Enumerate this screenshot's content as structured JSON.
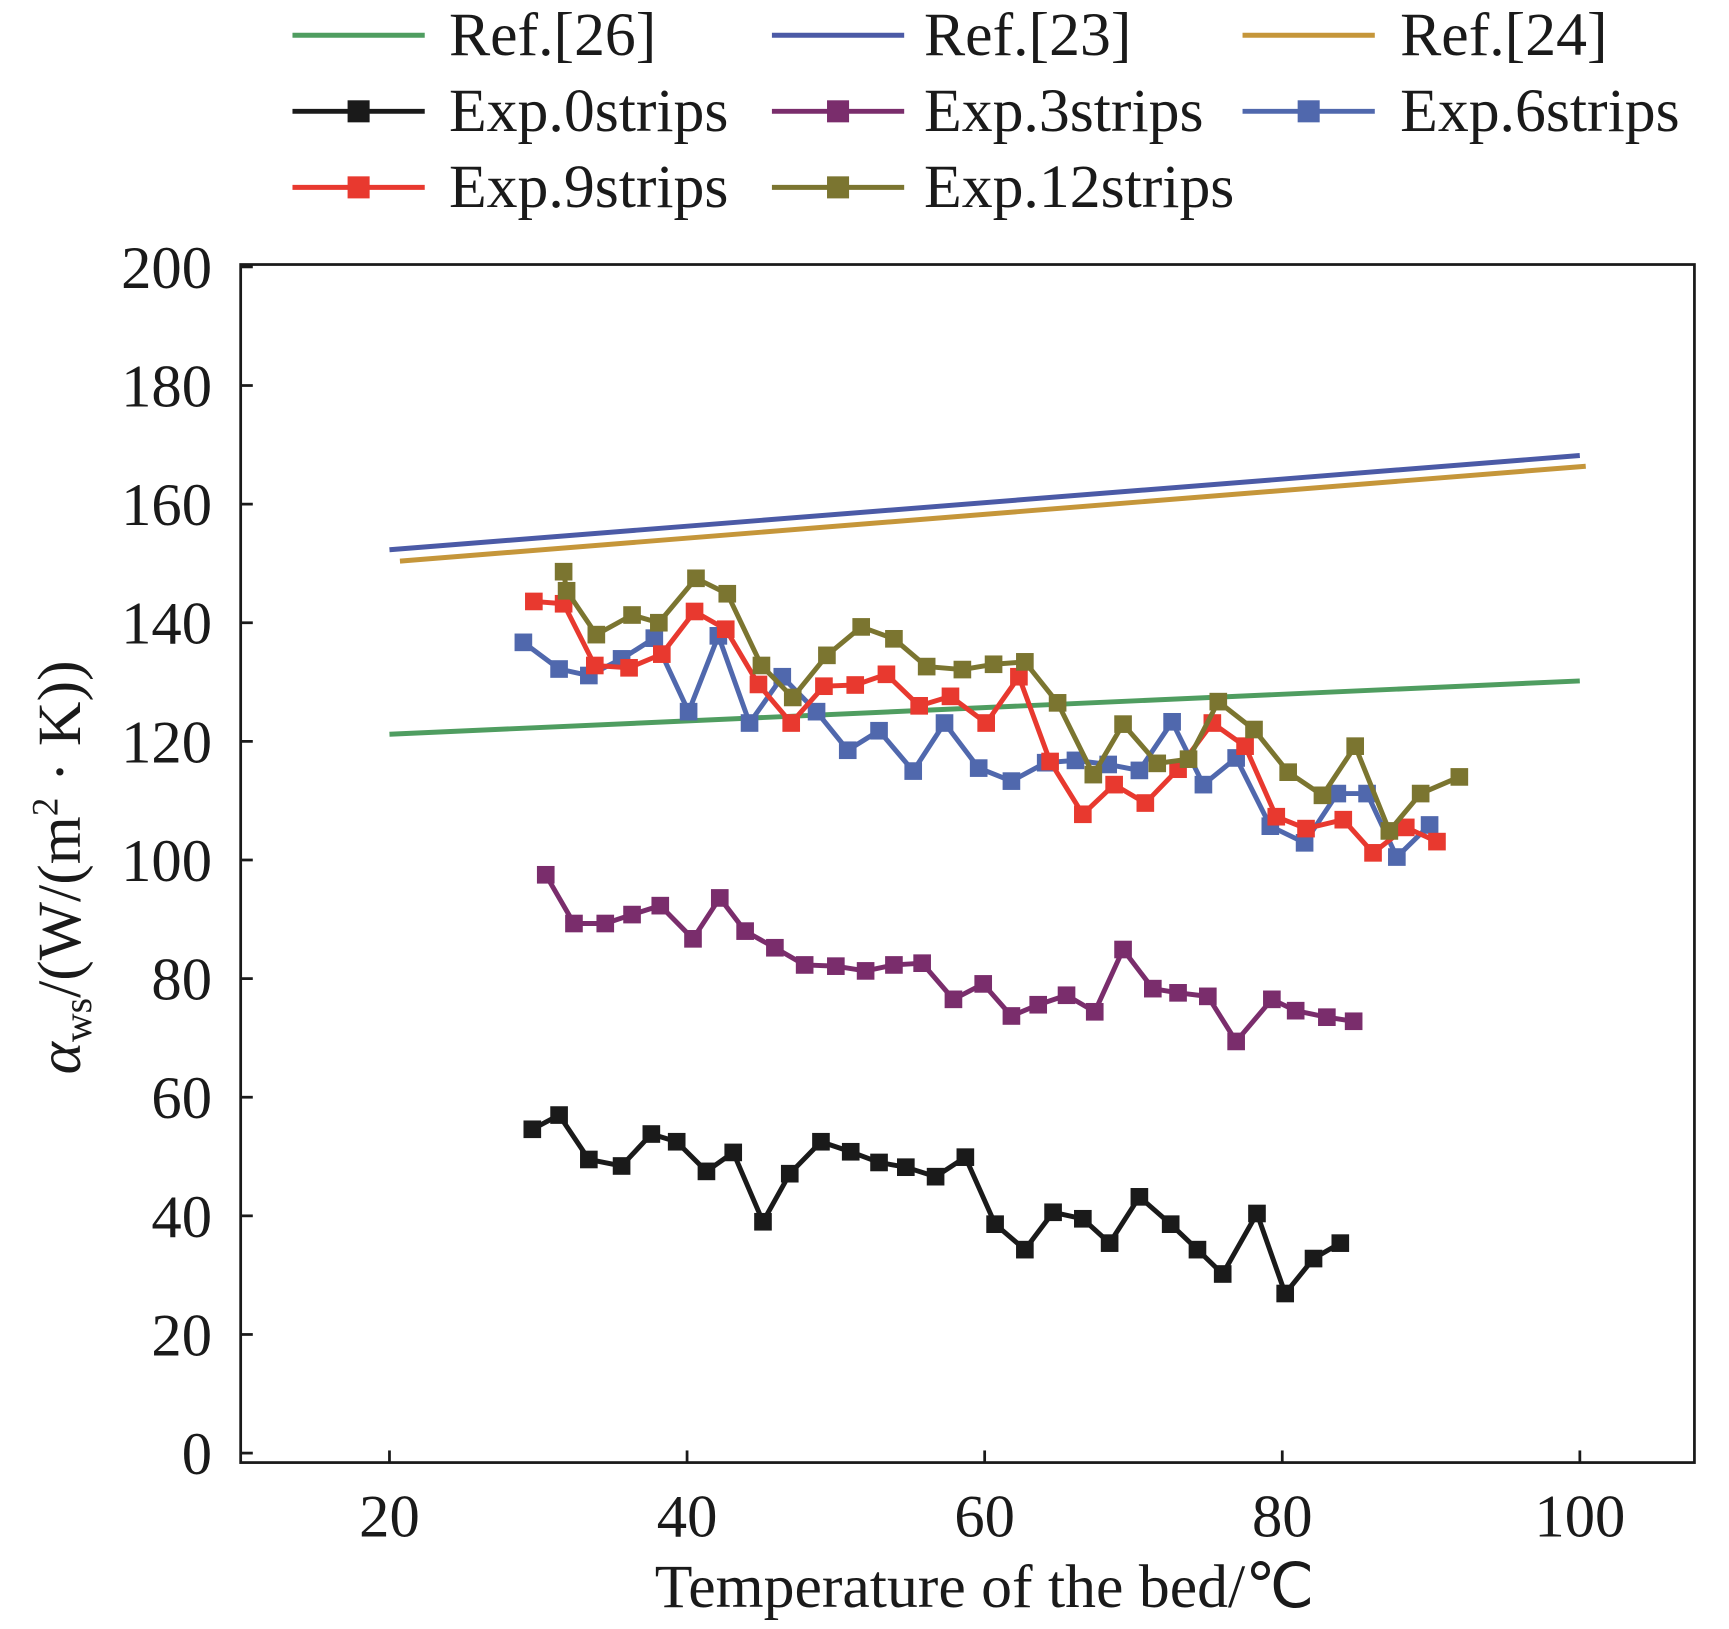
{
  "chart_data": {
    "type": "line",
    "xlabel": "Temperature of the bed/℃",
    "ylabel": {
      "symbol": "α",
      "subscript": "ws",
      "unit_a": "/(W/(m",
      "superscript": "2",
      "unit_b": " · K))"
    },
    "xlim": [
      10,
      107.7
    ],
    "ylim": [
      -1.6,
      200.4
    ],
    "x_ticks": [
      20,
      40,
      60,
      80,
      100
    ],
    "y_ticks": [
      0,
      20,
      40,
      60,
      80,
      100,
      120,
      140,
      160,
      180,
      200
    ],
    "grid": false,
    "series": [
      {
        "name": "Ref.[26]",
        "color": "#4f9d60",
        "markers": false,
        "x": [
          20,
          100
        ],
        "y": [
          121.2,
          130.2
        ]
      },
      {
        "name": "Ref.[23]",
        "color": "#4b5aa6",
        "markers": false,
        "x": [
          20,
          100
        ],
        "y": [
          152.3,
          168.2
        ]
      },
      {
        "name": "Ref.[24]",
        "color": "#c5963a",
        "markers": false,
        "x": [
          20.7,
          100.4
        ],
        "y": [
          150.4,
          166.4
        ]
      },
      {
        "name": "Exp.0strips",
        "color": "#1a1a1a",
        "markers": true,
        "x": [
          29.6,
          31.4,
          33.4,
          35.6,
          37.6,
          39.3,
          41.3,
          43.1,
          45.1,
          46.9,
          49.0,
          51.0,
          52.9,
          54.7,
          56.7,
          58.7,
          60.7,
          62.7,
          64.6,
          66.6,
          68.4,
          70.4,
          72.5,
          74.3,
          76.0,
          78.3,
          80.2,
          82.1,
          83.9
        ],
        "y": [
          54.6,
          57.0,
          49.5,
          48.4,
          53.8,
          52.5,
          47.5,
          50.7,
          39.0,
          47.1,
          52.5,
          50.8,
          49.0,
          48.2,
          46.6,
          49.9,
          38.6,
          34.3,
          40.6,
          39.5,
          35.4,
          43.2,
          38.6,
          34.3,
          30.2,
          40.4,
          26.9,
          32.8,
          35.4
        ]
      },
      {
        "name": "Exp.3strips",
        "color": "#7a2d6c",
        "markers": true,
        "x": [
          30.5,
          32.4,
          34.5,
          36.3,
          38.2,
          40.4,
          42.2,
          43.9,
          45.9,
          47.9,
          50.0,
          52.0,
          53.9,
          55.8,
          57.9,
          59.9,
          61.8,
          63.6,
          65.5,
          67.4,
          69.3,
          71.3,
          73.0,
          75.0,
          76.9,
          79.3,
          80.9,
          83.0,
          84.8
        ],
        "y": [
          97.5,
          89.3,
          89.3,
          90.8,
          92.3,
          86.7,
          93.6,
          88.0,
          85.2,
          82.3,
          82.1,
          81.3,
          82.3,
          82.6,
          76.5,
          79.1,
          73.7,
          75.6,
          77.2,
          74.4,
          84.9,
          78.3,
          77.6,
          77.0,
          69.4,
          76.5,
          74.6,
          73.5,
          72.8
        ]
      },
      {
        "name": "Exp.6strips",
        "color": "#5068ad",
        "markers": true,
        "x": [
          29.0,
          31.4,
          33.4,
          35.6,
          37.8,
          40.1,
          42.1,
          44.2,
          46.4,
          48.7,
          50.8,
          52.9,
          55.2,
          57.3,
          59.6,
          61.8,
          64.1,
          66.1,
          68.3,
          70.4,
          72.6,
          74.7,
          76.9,
          79.2,
          81.5,
          83.7,
          85.7,
          87.7,
          89.9
        ],
        "y": [
          136.7,
          132.2,
          131.1,
          133.9,
          137.4,
          125.0,
          137.8,
          123.1,
          130.9,
          125.0,
          118.5,
          121.8,
          115.0,
          123.1,
          115.5,
          113.3,
          116.4,
          116.8,
          116.1,
          115.1,
          123.3,
          112.7,
          117.2,
          105.7,
          102.9,
          111.2,
          111.2,
          100.5,
          105.9
        ]
      },
      {
        "name": "Exp.9strips",
        "color": "#e8392f",
        "markers": true,
        "x": [
          29.7,
          31.7,
          33.8,
          36.1,
          38.3,
          40.5,
          42.6,
          44.8,
          47.0,
          49.2,
          51.3,
          53.4,
          55.6,
          57.7,
          60.1,
          62.3,
          64.4,
          66.6,
          68.7,
          70.8,
          73.0,
          75.3,
          77.5,
          79.6,
          81.6,
          84.1,
          86.1,
          88.3,
          90.4
        ],
        "y": [
          143.6,
          143.2,
          132.8,
          132.4,
          134.7,
          141.9,
          138.9,
          129.6,
          123.1,
          129.3,
          129.5,
          131.3,
          126.0,
          127.6,
          123.1,
          130.9,
          116.6,
          107.7,
          112.7,
          109.6,
          115.3,
          123.1,
          119.2,
          107.3,
          105.3,
          106.8,
          101.2,
          105.5,
          103.1
        ]
      },
      {
        "name": "Exp.12strips",
        "color": "#7b7530",
        "markers": true,
        "x": [
          31.7,
          31.9,
          33.9,
          36.3,
          38.1,
          40.6,
          42.7,
          45.0,
          47.1,
          49.4,
          51.7,
          53.9,
          56.1,
          58.5,
          60.6,
          62.7,
          64.9,
          67.3,
          69.3,
          71.6,
          73.7,
          75.7,
          78.1,
          80.4,
          82.7,
          84.9,
          87.2,
          89.3,
          91.9
        ],
        "y": [
          148.6,
          145.4,
          138.0,
          141.3,
          140.0,
          147.5,
          144.9,
          132.8,
          127.4,
          134.5,
          139.3,
          137.3,
          132.6,
          132.1,
          133.0,
          133.4,
          126.5,
          114.4,
          122.9,
          116.3,
          117.0,
          126.7,
          122.0,
          114.8,
          110.9,
          119.2,
          104.9,
          111.2,
          114.0
        ]
      }
    ]
  }
}
